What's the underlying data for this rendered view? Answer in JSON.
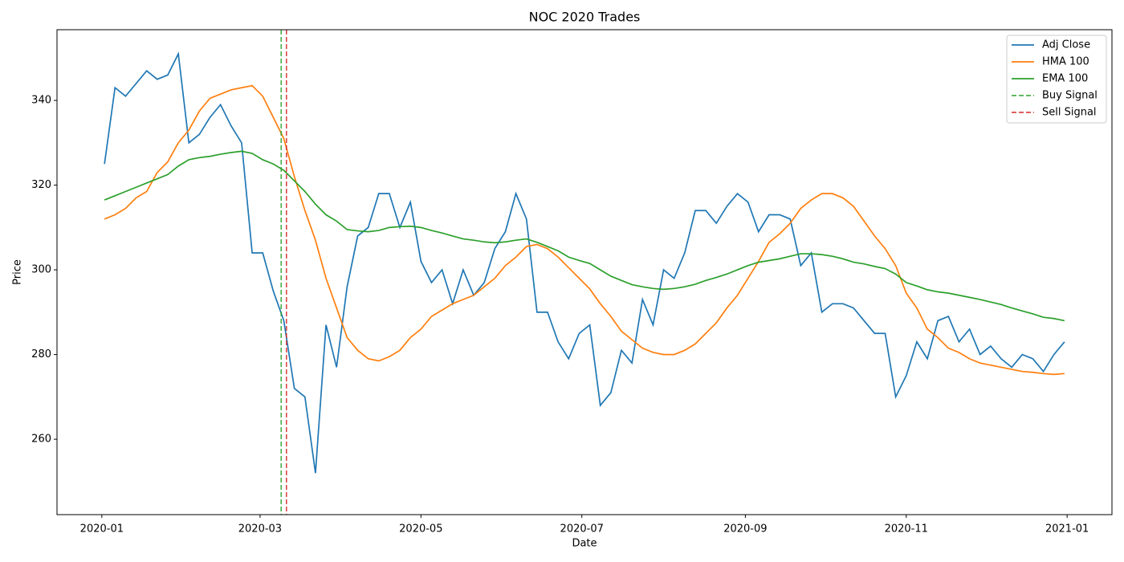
{
  "chart_data": {
    "type": "line",
    "title": "NOC 2020 Trades",
    "x_label": "Date",
    "y_label": "Price",
    "x": [
      1,
      5,
      9,
      13,
      17,
      21,
      25,
      29,
      33,
      37,
      41,
      45,
      49,
      53,
      57,
      61,
      65,
      69,
      73,
      77,
      81,
      85,
      89,
      93,
      97,
      101,
      105,
      109,
      113,
      117,
      121,
      125,
      129,
      133,
      137,
      141,
      145,
      149,
      153,
      157,
      161,
      165,
      169,
      173,
      177,
      181,
      185,
      189,
      193,
      197,
      201,
      205,
      209,
      213,
      217,
      221,
      225,
      229,
      233,
      237,
      241,
      245,
      249,
      253,
      257,
      261,
      265,
      269,
      273,
      277,
      281,
      285,
      289,
      293,
      297,
      301,
      305,
      309,
      313,
      317,
      321,
      325,
      329,
      333,
      337,
      341,
      345,
      349,
      353,
      357,
      361,
      365
    ],
    "series": [
      {
        "name": "Adj Close",
        "color": "#1f77b4",
        "values": [
          325,
          343,
          341,
          344,
          347,
          345,
          346,
          351,
          330,
          332,
          336,
          339,
          334,
          330,
          304,
          304,
          295,
          288,
          272,
          270,
          252,
          287,
          277,
          296,
          308,
          310,
          318,
          318,
          310,
          316,
          302,
          297,
          300,
          292,
          300,
          294,
          297,
          305,
          309,
          318,
          312,
          290,
          290,
          283,
          279,
          285,
          287,
          268,
          271,
          281,
          278,
          293,
          287,
          300,
          298,
          304,
          314,
          314,
          311,
          315,
          318,
          316,
          309,
          313,
          313,
          312,
          301,
          304,
          290,
          292,
          292,
          291,
          288,
          285,
          285,
          270,
          275,
          283,
          279,
          288,
          289,
          283,
          286,
          280,
          282,
          279,
          277,
          280,
          279,
          276,
          280,
          283
        ]
      },
      {
        "name": "HMA 100",
        "color": "#ff7f0e",
        "values": [
          312,
          313,
          314.5,
          317,
          318.5,
          323,
          325.5,
          330,
          333,
          337.5,
          340.5,
          341.5,
          342.5,
          343,
          343.5,
          341,
          336,
          331,
          322,
          314,
          307,
          298,
          291,
          284,
          281,
          279,
          278.5,
          279.5,
          281,
          284,
          286,
          289,
          290.5,
          292,
          293,
          294,
          296,
          298,
          301,
          303,
          305.5,
          306,
          305,
          303,
          300.5,
          298,
          295.5,
          292,
          289,
          285.5,
          283.5,
          281.5,
          280.5,
          280,
          280,
          281,
          282.5,
          285,
          287.5,
          291,
          294,
          298,
          302,
          306.5,
          308.5,
          311,
          314.5,
          316.5,
          318,
          318,
          317,
          315,
          311.5,
          308,
          305,
          301,
          294.5,
          291,
          286,
          284,
          281.5,
          280.5,
          279,
          278,
          277.5,
          277,
          276.5,
          276,
          275.8,
          275.5,
          275.3,
          275.5
        ]
      },
      {
        "name": "EMA 100",
        "color": "#2ca02c",
        "values": [
          316.5,
          317.5,
          318.5,
          319.5,
          320.5,
          321.5,
          322.5,
          324.5,
          326,
          326.5,
          326.8,
          327.3,
          327.7,
          328,
          327.5,
          326,
          325,
          323.5,
          321,
          318.5,
          315.5,
          313,
          311.5,
          309.5,
          309.2,
          309,
          309.3,
          310,
          310.2,
          310.3,
          310,
          309.3,
          308.7,
          308,
          307.3,
          307,
          306.6,
          306.4,
          306.6,
          307,
          307.3,
          306.5,
          305.5,
          304.5,
          303,
          302.2,
          301.5,
          300,
          298.5,
          297.5,
          296.5,
          296,
          295.6,
          295.4,
          295.6,
          296,
          296.6,
          297.5,
          298.2,
          299,
          300,
          301,
          301.8,
          302.2,
          302.6,
          303.2,
          303.8,
          303.8,
          303.6,
          303.2,
          302.6,
          301.8,
          301.4,
          300.8,
          300.3,
          299,
          297,
          296.2,
          295.3,
          294.8,
          294.5,
          294,
          293.5,
          293,
          292.4,
          291.8,
          291,
          290.3,
          289.6,
          288.8,
          288.5,
          288
        ]
      }
    ],
    "signals": [
      {
        "name": "Buy Signal",
        "color": "#2ca02c",
        "x": 68
      },
      {
        "name": "Sell Signal",
        "color": "#d62728",
        "x": 70
      }
    ],
    "xlim": [
      -17,
      383
    ],
    "xticks": [
      {
        "value": 0,
        "label": "2020-01"
      },
      {
        "value": 60,
        "label": "2020-03"
      },
      {
        "value": 121,
        "label": "2020-05"
      },
      {
        "value": 182,
        "label": "2020-07"
      },
      {
        "value": 244,
        "label": "2020-09"
      },
      {
        "value": 305,
        "label": "2020-11"
      },
      {
        "value": 366,
        "label": "2021-01"
      }
    ],
    "ylim": [
      242.2,
      356.7
    ],
    "yticks": [
      260,
      280,
      300,
      320,
      340
    ],
    "grid": false,
    "legend": "upper right"
  }
}
